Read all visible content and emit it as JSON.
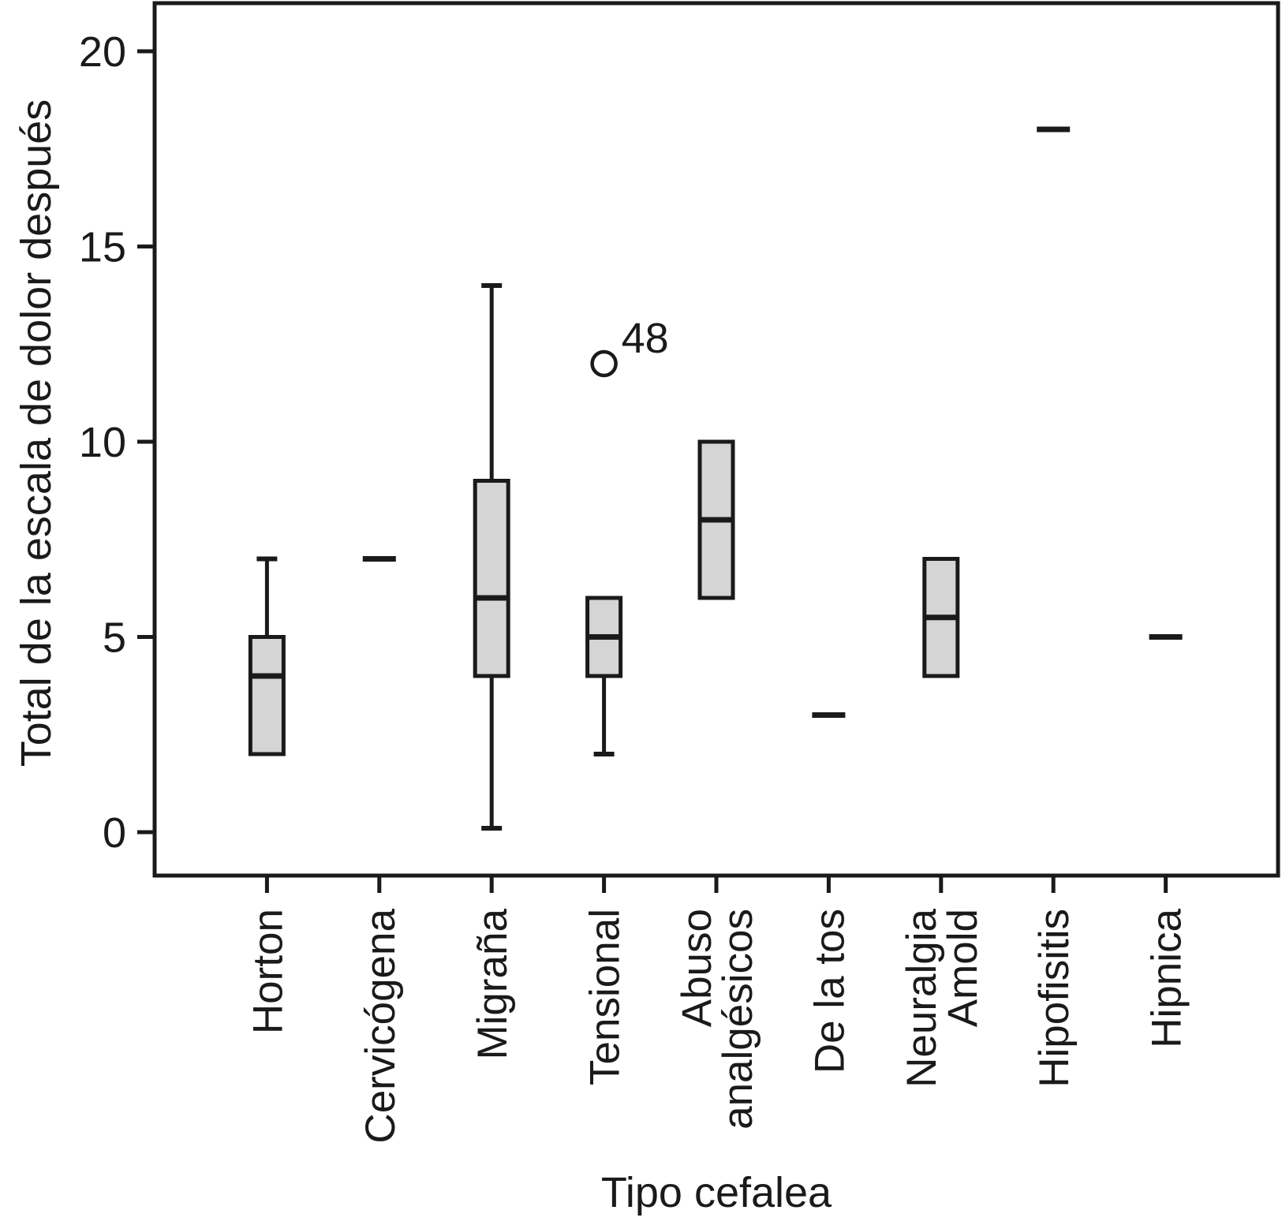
{
  "chart_data": {
    "type": "boxplot",
    "title": "",
    "xlabel": "Tipo cefalea",
    "ylabel": "Total de la escala de dolor después",
    "yticks": [
      0,
      5,
      10,
      15,
      20
    ],
    "ylim": [
      -1.1,
      21.2
    ],
    "grid": false,
    "legend": "none",
    "categories": [
      {
        "lines": [
          "Horton"
        ]
      },
      {
        "lines": [
          "Cervicógena"
        ]
      },
      {
        "lines": [
          "Migraña"
        ]
      },
      {
        "lines": [
          "Tensional"
        ]
      },
      {
        "lines": [
          "Abuso",
          "analgésicos"
        ]
      },
      {
        "lines": [
          "De la tos"
        ]
      },
      {
        "lines": [
          "Neuralgia",
          "Amold"
        ]
      },
      {
        "lines": [
          "Hipofisitis"
        ]
      },
      {
        "lines": [
          "Hipnica"
        ]
      }
    ],
    "series": [
      {
        "name": "Horton",
        "q1": 2,
        "median": 4,
        "q3": 5,
        "whisker_low": null,
        "whisker_high": 7,
        "outliers": []
      },
      {
        "name": "Cervicógena",
        "single_value": 7,
        "outliers": []
      },
      {
        "name": "Migraña",
        "q1": 4,
        "median": 6,
        "q3": 9,
        "whisker_low": 0.1,
        "whisker_high": 14,
        "outliers": []
      },
      {
        "name": "Tensional",
        "q1": 4,
        "median": 5,
        "q3": 6,
        "whisker_low": 2,
        "whisker_high": null,
        "outliers": [
          {
            "value": 12,
            "label": "48"
          }
        ]
      },
      {
        "name": "Abuso analgésicos",
        "q1": 6,
        "median": 8,
        "q3": 10,
        "whisker_low": null,
        "whisker_high": null,
        "outliers": []
      },
      {
        "name": "De la tos",
        "single_value": 3,
        "outliers": []
      },
      {
        "name": "Neuralgia Amold",
        "q1": 4,
        "median": 5.5,
        "q3": 7,
        "whisker_low": null,
        "whisker_high": null,
        "outliers": []
      },
      {
        "name": "Hipofisitis",
        "single_value": 18,
        "outliers": []
      },
      {
        "name": "Hipnica",
        "single_value": 5,
        "outliers": []
      }
    ],
    "colors": {
      "box_fill": "#d5d5d5",
      "line": "#1a1a1a",
      "background": "#ffffff"
    }
  }
}
